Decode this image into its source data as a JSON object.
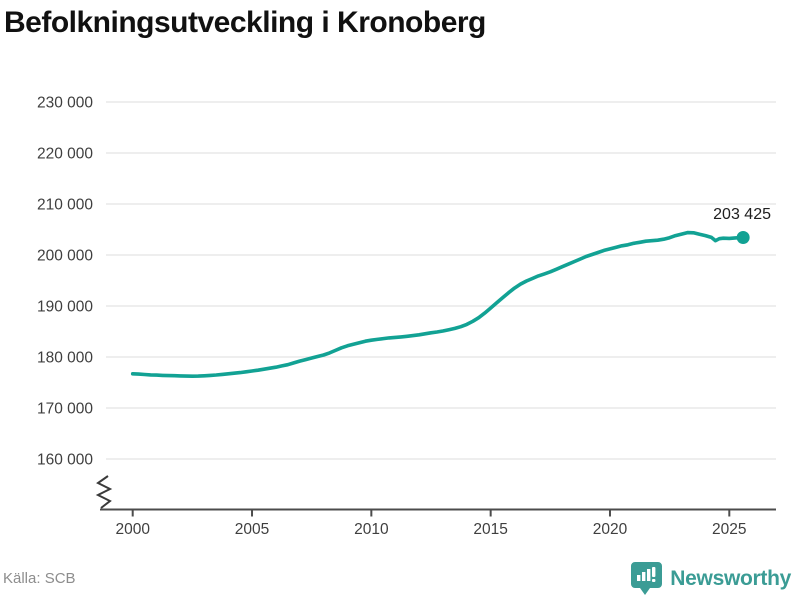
{
  "chart_data": {
    "type": "line",
    "title": "Befolkningsutveckling i Kronoberg",
    "xlabel": "",
    "ylabel": "",
    "x_ticks": [
      2000,
      2005,
      2010,
      2015,
      2020,
      2025
    ],
    "x_tick_labels": [
      "2000",
      "2005",
      "2010",
      "2015",
      "2020",
      "2025"
    ],
    "y_ticks": [
      230000,
      220000,
      210000,
      200000,
      190000,
      180000,
      170000,
      160000
    ],
    "y_tick_labels": [
      "230 000",
      "220 000",
      "210 000",
      "200 000",
      "190 000",
      "180 000",
      "170 000",
      "160 000"
    ],
    "ylim": [
      160000,
      230000
    ],
    "axis_break_at_bottom": true,
    "grid": "horizontal",
    "legend_position": "none",
    "end_label": "203 425",
    "end_value": 203425,
    "series": [
      {
        "name": "Kronoberg",
        "points": [
          [
            2000.0,
            176700
          ],
          [
            2000.25,
            176640
          ],
          [
            2000.5,
            176560
          ],
          [
            2000.75,
            176500
          ],
          [
            2001.0,
            176450
          ],
          [
            2001.25,
            176400
          ],
          [
            2001.5,
            176360
          ],
          [
            2001.75,
            176330
          ],
          [
            2002.0,
            176300
          ],
          [
            2002.25,
            176260
          ],
          [
            2002.5,
            176230
          ],
          [
            2002.75,
            176260
          ],
          [
            2003.0,
            176320
          ],
          [
            2003.25,
            176400
          ],
          [
            2003.5,
            176480
          ],
          [
            2003.75,
            176580
          ],
          [
            2004.0,
            176700
          ],
          [
            2004.25,
            176820
          ],
          [
            2004.5,
            176950
          ],
          [
            2004.75,
            177100
          ],
          [
            2005.0,
            177250
          ],
          [
            2005.25,
            177420
          ],
          [
            2005.5,
            177600
          ],
          [
            2005.75,
            177800
          ],
          [
            2006.0,
            178000
          ],
          [
            2006.25,
            178250
          ],
          [
            2006.5,
            178500
          ],
          [
            2006.75,
            178850
          ],
          [
            2007.0,
            179200
          ],
          [
            2007.25,
            179500
          ],
          [
            2007.5,
            179800
          ],
          [
            2007.75,
            180100
          ],
          [
            2008.0,
            180400
          ],
          [
            2008.25,
            180800
          ],
          [
            2008.5,
            181300
          ],
          [
            2008.75,
            181800
          ],
          [
            2009.0,
            182200
          ],
          [
            2009.25,
            182500
          ],
          [
            2009.5,
            182800
          ],
          [
            2009.75,
            183100
          ],
          [
            2010.0,
            183300
          ],
          [
            2010.25,
            183450
          ],
          [
            2010.5,
            183600
          ],
          [
            2010.75,
            183750
          ],
          [
            2011.0,
            183850
          ],
          [
            2011.25,
            183950
          ],
          [
            2011.5,
            184050
          ],
          [
            2011.75,
            184200
          ],
          [
            2012.0,
            184350
          ],
          [
            2012.25,
            184550
          ],
          [
            2012.5,
            184750
          ],
          [
            2012.75,
            184900
          ],
          [
            2013.0,
            185100
          ],
          [
            2013.25,
            185350
          ],
          [
            2013.5,
            185600
          ],
          [
            2013.75,
            185950
          ],
          [
            2014.0,
            186400
          ],
          [
            2014.25,
            187000
          ],
          [
            2014.5,
            187700
          ],
          [
            2014.75,
            188600
          ],
          [
            2015.0,
            189600
          ],
          [
            2015.25,
            190600
          ],
          [
            2015.5,
            191600
          ],
          [
            2015.75,
            192600
          ],
          [
            2016.0,
            193500
          ],
          [
            2016.25,
            194300
          ],
          [
            2016.5,
            194900
          ],
          [
            2016.75,
            195400
          ],
          [
            2017.0,
            195900
          ],
          [
            2017.25,
            196300
          ],
          [
            2017.5,
            196700
          ],
          [
            2017.75,
            197200
          ],
          [
            2018.0,
            197700
          ],
          [
            2018.25,
            198200
          ],
          [
            2018.5,
            198700
          ],
          [
            2018.75,
            199200
          ],
          [
            2019.0,
            199700
          ],
          [
            2019.25,
            200100
          ],
          [
            2019.5,
            200500
          ],
          [
            2019.75,
            200900
          ],
          [
            2020.0,
            201200
          ],
          [
            2020.25,
            201500
          ],
          [
            2020.5,
            201800
          ],
          [
            2020.75,
            202000
          ],
          [
            2021.0,
            202300
          ],
          [
            2021.25,
            202500
          ],
          [
            2021.5,
            202700
          ],
          [
            2021.75,
            202800
          ],
          [
            2022.0,
            202900
          ],
          [
            2022.25,
            203100
          ],
          [
            2022.5,
            203400
          ],
          [
            2022.75,
            203800
          ],
          [
            2023.0,
            204100
          ],
          [
            2023.25,
            204400
          ],
          [
            2023.5,
            204350
          ],
          [
            2023.75,
            204050
          ],
          [
            2024.0,
            203800
          ],
          [
            2024.25,
            203450
          ],
          [
            2024.42,
            202800
          ],
          [
            2024.58,
            203200
          ],
          [
            2024.75,
            203300
          ],
          [
            2025.0,
            203250
          ],
          [
            2025.25,
            203350
          ],
          [
            2025.58,
            203425
          ]
        ]
      }
    ]
  },
  "footer": {
    "source": "Källa: SCB",
    "brand": "Newsworthy"
  },
  "colors": {
    "line": "#12a294",
    "brand": "#3b9c95",
    "grid": "#e3e3e3",
    "axis": "#4c4c4c",
    "tick_label": "#3f3f3f",
    "end_label": "#202020",
    "title": "#111111",
    "source": "#8d8d8d"
  }
}
